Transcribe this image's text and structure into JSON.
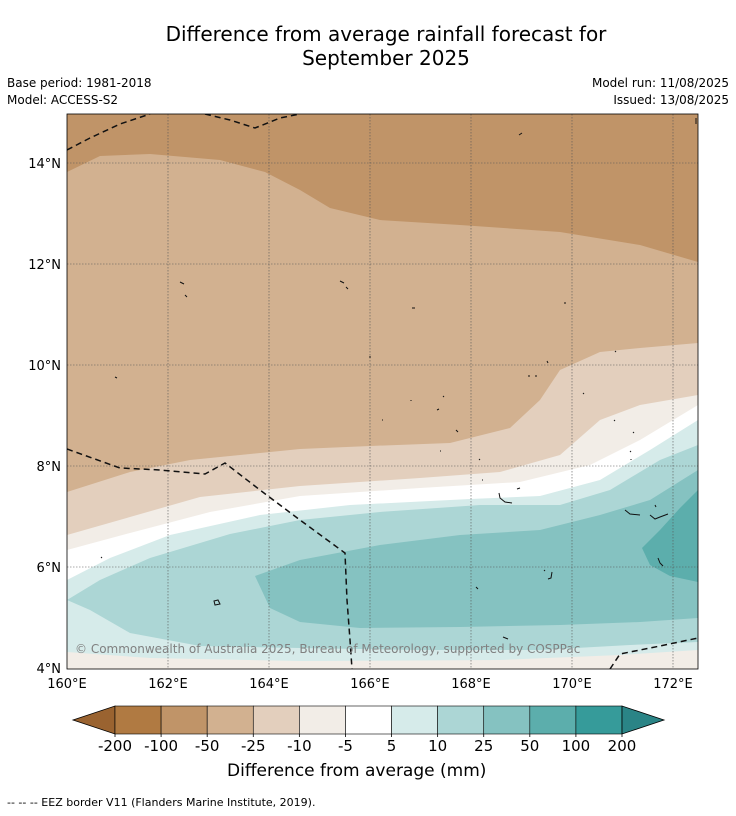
{
  "title_line1": "Difference from average rainfall forecast for",
  "title_line2": "September 2025",
  "base_period": "Base period: 1981-2018",
  "model": "Model: ACCESS-S2",
  "model_run": "Model run: 11/08/2025",
  "issued": "Issued: 13/08/2025",
  "copyright": "© Commonwealth of Australia 2025, Bureau of Meteorology, supported by COSPPac",
  "lat_labels": [
    "14°N",
    "12°N",
    "10°N",
    "8°N",
    "6°N",
    "4°N"
  ],
  "lon_labels": [
    "160°E",
    "162°E",
    "164°E",
    "166°E",
    "168°E",
    "170°E",
    "172°E"
  ],
  "colorbar": {
    "title": "Difference from average (mm)",
    "ticks": [
      "-200",
      "-100",
      "-50",
      "-25",
      "-10",
      "-5",
      "5",
      "10",
      "25",
      "50",
      "100",
      "200"
    ],
    "colors": [
      "#9a6330",
      "#b07a42",
      "#c09468",
      "#d2b190",
      "#e3cfbd",
      "#f2ede7",
      "#ffffff",
      "#d6ebea",
      "#acd6d5",
      "#85c2c1",
      "#5caeac",
      "#369b9a",
      "#2a8486"
    ]
  },
  "footer": "--  --  -- EEZ border V11 (Flanders Marine Institute, 2019)."
}
